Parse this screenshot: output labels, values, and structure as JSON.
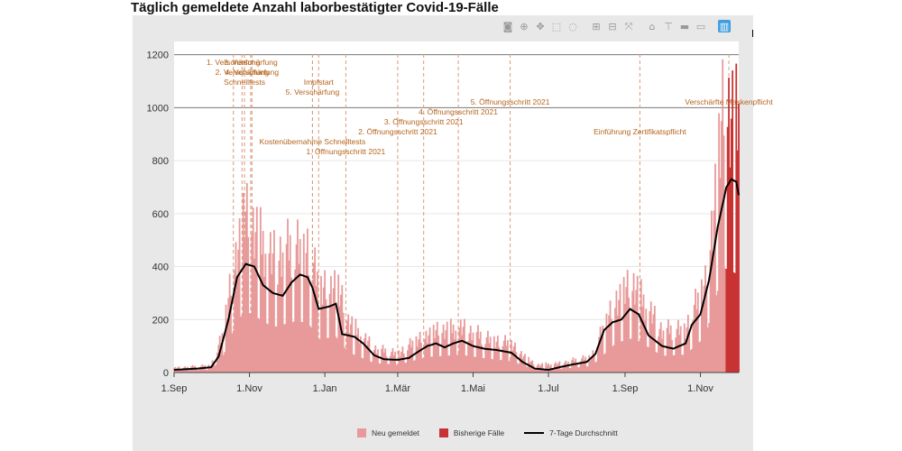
{
  "title": "Täglich gemeldete Anzahl laborbestätigter Covid-19-Fälle",
  "modebar": {
    "icons": [
      "camera-icon",
      "zoom-icon",
      "pan-icon",
      "box-select-icon",
      "lasso-icon",
      "zoom-in-icon",
      "zoom-out-icon",
      "autoscale-icon",
      "reset-axes-icon",
      "spike-lines-icon",
      "hover-closest-icon",
      "hover-compare-icon",
      "plotly-logo-icon"
    ],
    "glyphs": [
      "◙",
      "⊕",
      "✥",
      "⬚",
      "◌",
      "⊞",
      "⊟",
      "⤧",
      "⌂",
      "⊤",
      "▬",
      "▭",
      "▥"
    ]
  },
  "legend": {
    "neu": "Neu gemeldet",
    "bisherige": "Bisherige Fälle",
    "avg": "7-Tage Durchschnitt"
  },
  "colors": {
    "neu": "#e89a9a",
    "bisherige": "#c83232",
    "avg": "#000000",
    "annotation": "#b5651d",
    "vline": "#d99a7a",
    "hline": "#777777"
  },
  "chart_data": {
    "type": "bar",
    "x_start": "2020-09-01",
    "x_end": "2021-12-02",
    "ylim": [
      0,
      1250
    ],
    "yticks": [
      0,
      200,
      400,
      600,
      800,
      1000,
      1200
    ],
    "xtick_labels": [
      "1.Sep",
      "1.Nov",
      "1.Jan",
      "1.Mär",
      "1.Mai",
      "1.Jul",
      "1.Sep",
      "1.Nov"
    ],
    "xtick_dates": [
      "2020-09-01",
      "2020-11-01",
      "2021-01-01",
      "2021-03-01",
      "2021-05-01",
      "2021-07-01",
      "2021-09-01",
      "2021-11-01"
    ],
    "hlines": [
      1000,
      1200
    ],
    "avg_keypoints": [
      [
        "2020-09-01",
        10
      ],
      [
        "2020-09-20",
        15
      ],
      [
        "2020-10-01",
        20
      ],
      [
        "2020-10-07",
        60
      ],
      [
        "2020-10-15",
        200
      ],
      [
        "2020-10-22",
        360
      ],
      [
        "2020-10-29",
        410
      ],
      [
        "2020-11-05",
        400
      ],
      [
        "2020-11-12",
        330
      ],
      [
        "2020-11-20",
        300
      ],
      [
        "2020-11-28",
        290
      ],
      [
        "2020-12-05",
        340
      ],
      [
        "2020-12-12",
        370
      ],
      [
        "2020-12-18",
        360
      ],
      [
        "2020-12-22",
        320
      ],
      [
        "2020-12-27",
        240
      ],
      [
        "2021-01-05",
        250
      ],
      [
        "2021-01-10",
        260
      ],
      [
        "2021-01-15",
        145
      ],
      [
        "2021-01-25",
        135
      ],
      [
        "2021-02-01",
        110
      ],
      [
        "2021-02-10",
        65
      ],
      [
        "2021-02-18",
        50
      ],
      [
        "2021-03-01",
        48
      ],
      [
        "2021-03-10",
        55
      ],
      [
        "2021-03-18",
        80
      ],
      [
        "2021-03-25",
        100
      ],
      [
        "2021-04-01",
        110
      ],
      [
        "2021-04-08",
        95
      ],
      [
        "2021-04-15",
        110
      ],
      [
        "2021-04-22",
        120
      ],
      [
        "2021-05-01",
        100
      ],
      [
        "2021-05-10",
        90
      ],
      [
        "2021-05-20",
        85
      ],
      [
        "2021-06-01",
        75
      ],
      [
        "2021-06-10",
        40
      ],
      [
        "2021-06-20",
        15
      ],
      [
        "2021-07-01",
        10
      ],
      [
        "2021-07-10",
        20
      ],
      [
        "2021-07-20",
        30
      ],
      [
        "2021-08-01",
        40
      ],
      [
        "2021-08-08",
        70
      ],
      [
        "2021-08-15",
        160
      ],
      [
        "2021-08-22",
        190
      ],
      [
        "2021-08-29",
        200
      ],
      [
        "2021-09-05",
        240
      ],
      [
        "2021-09-12",
        220
      ],
      [
        "2021-09-20",
        140
      ],
      [
        "2021-10-01",
        100
      ],
      [
        "2021-10-10",
        90
      ],
      [
        "2021-10-20",
        110
      ],
      [
        "2021-10-25",
        180
      ],
      [
        "2021-11-01",
        220
      ],
      [
        "2021-11-08",
        350
      ],
      [
        "2021-11-15",
        550
      ],
      [
        "2021-11-22",
        700
      ],
      [
        "2021-11-26",
        730
      ],
      [
        "2021-11-30",
        720
      ],
      [
        "2021-12-02",
        670
      ]
    ],
    "bar_keypoints": [
      [
        "2020-09-01",
        15
      ],
      [
        "2020-10-01",
        25
      ],
      [
        "2020-10-10",
        120
      ],
      [
        "2020-10-20",
        380
      ],
      [
        "2020-10-28",
        520
      ],
      [
        "2020-11-06",
        470
      ],
      [
        "2020-11-20",
        380
      ],
      [
        "2020-12-08",
        430
      ],
      [
        "2020-12-18",
        420
      ],
      [
        "2020-12-28",
        280
      ],
      [
        "2021-01-10",
        300
      ],
      [
        "2021-01-20",
        170
      ],
      [
        "2021-02-10",
        80
      ],
      [
        "2021-03-01",
        65
      ],
      [
        "2021-03-25",
        130
      ],
      [
        "2021-04-20",
        150
      ],
      [
        "2021-05-10",
        120
      ],
      [
        "2021-06-01",
        95
      ],
      [
        "2021-06-20",
        25
      ],
      [
        "2021-07-10",
        30
      ],
      [
        "2021-08-05",
        55
      ],
      [
        "2021-08-25",
        250
      ],
      [
        "2021-09-08",
        290
      ],
      [
        "2021-10-01",
        140
      ],
      [
        "2021-10-20",
        150
      ],
      [
        "2021-11-05",
        300
      ],
      [
        "2021-11-20",
        880
      ],
      [
        "2021-12-02",
        820
      ]
    ],
    "recent_start": "2021-11-22",
    "annotations": [
      {
        "date": "2020-10-19",
        "text": "1. Verschärfung",
        "level": 1
      },
      {
        "date": "2020-10-26",
        "text": "2. Verschärfung",
        "level": 2
      },
      {
        "date": "2020-10-28",
        "text": "Schnelltests",
        "level": 3
      },
      {
        "date": "2020-11-02",
        "text": "3. Verschärfung",
        "level": 1
      },
      {
        "date": "2020-11-03",
        "text": "4. Verschärfung",
        "level": 2
      },
      {
        "date": "2020-12-22",
        "text": "Kostenübernahme Schnelltests",
        "level": 9
      },
      {
        "date": "2020-12-22",
        "text": "5. Verschärfung",
        "level": 4
      },
      {
        "date": "2020-12-27",
        "text": "Impfstart",
        "level": 3
      },
      {
        "date": "2021-01-18",
        "text": "1. Öffnungsschritt 2021",
        "level": 10
      },
      {
        "date": "2021-03-01",
        "text": "2. Öffnungsschritt 2021",
        "level": 8
      },
      {
        "date": "2021-03-22",
        "text": "3. Öffnungsschritt 2021",
        "level": 7
      },
      {
        "date": "2021-04-19",
        "text": "4. Öffnungsschritt 2021",
        "level": 6
      },
      {
        "date": "2021-05-31",
        "text": "5. Öffnungsschritt 2021",
        "level": 5
      },
      {
        "date": "2021-09-13",
        "text": "Einführung Zertifikatspflicht",
        "level": 8
      },
      {
        "date": "2021-11-24",
        "text": "Verschärfte Maskenpflicht",
        "level": 5
      }
    ]
  }
}
